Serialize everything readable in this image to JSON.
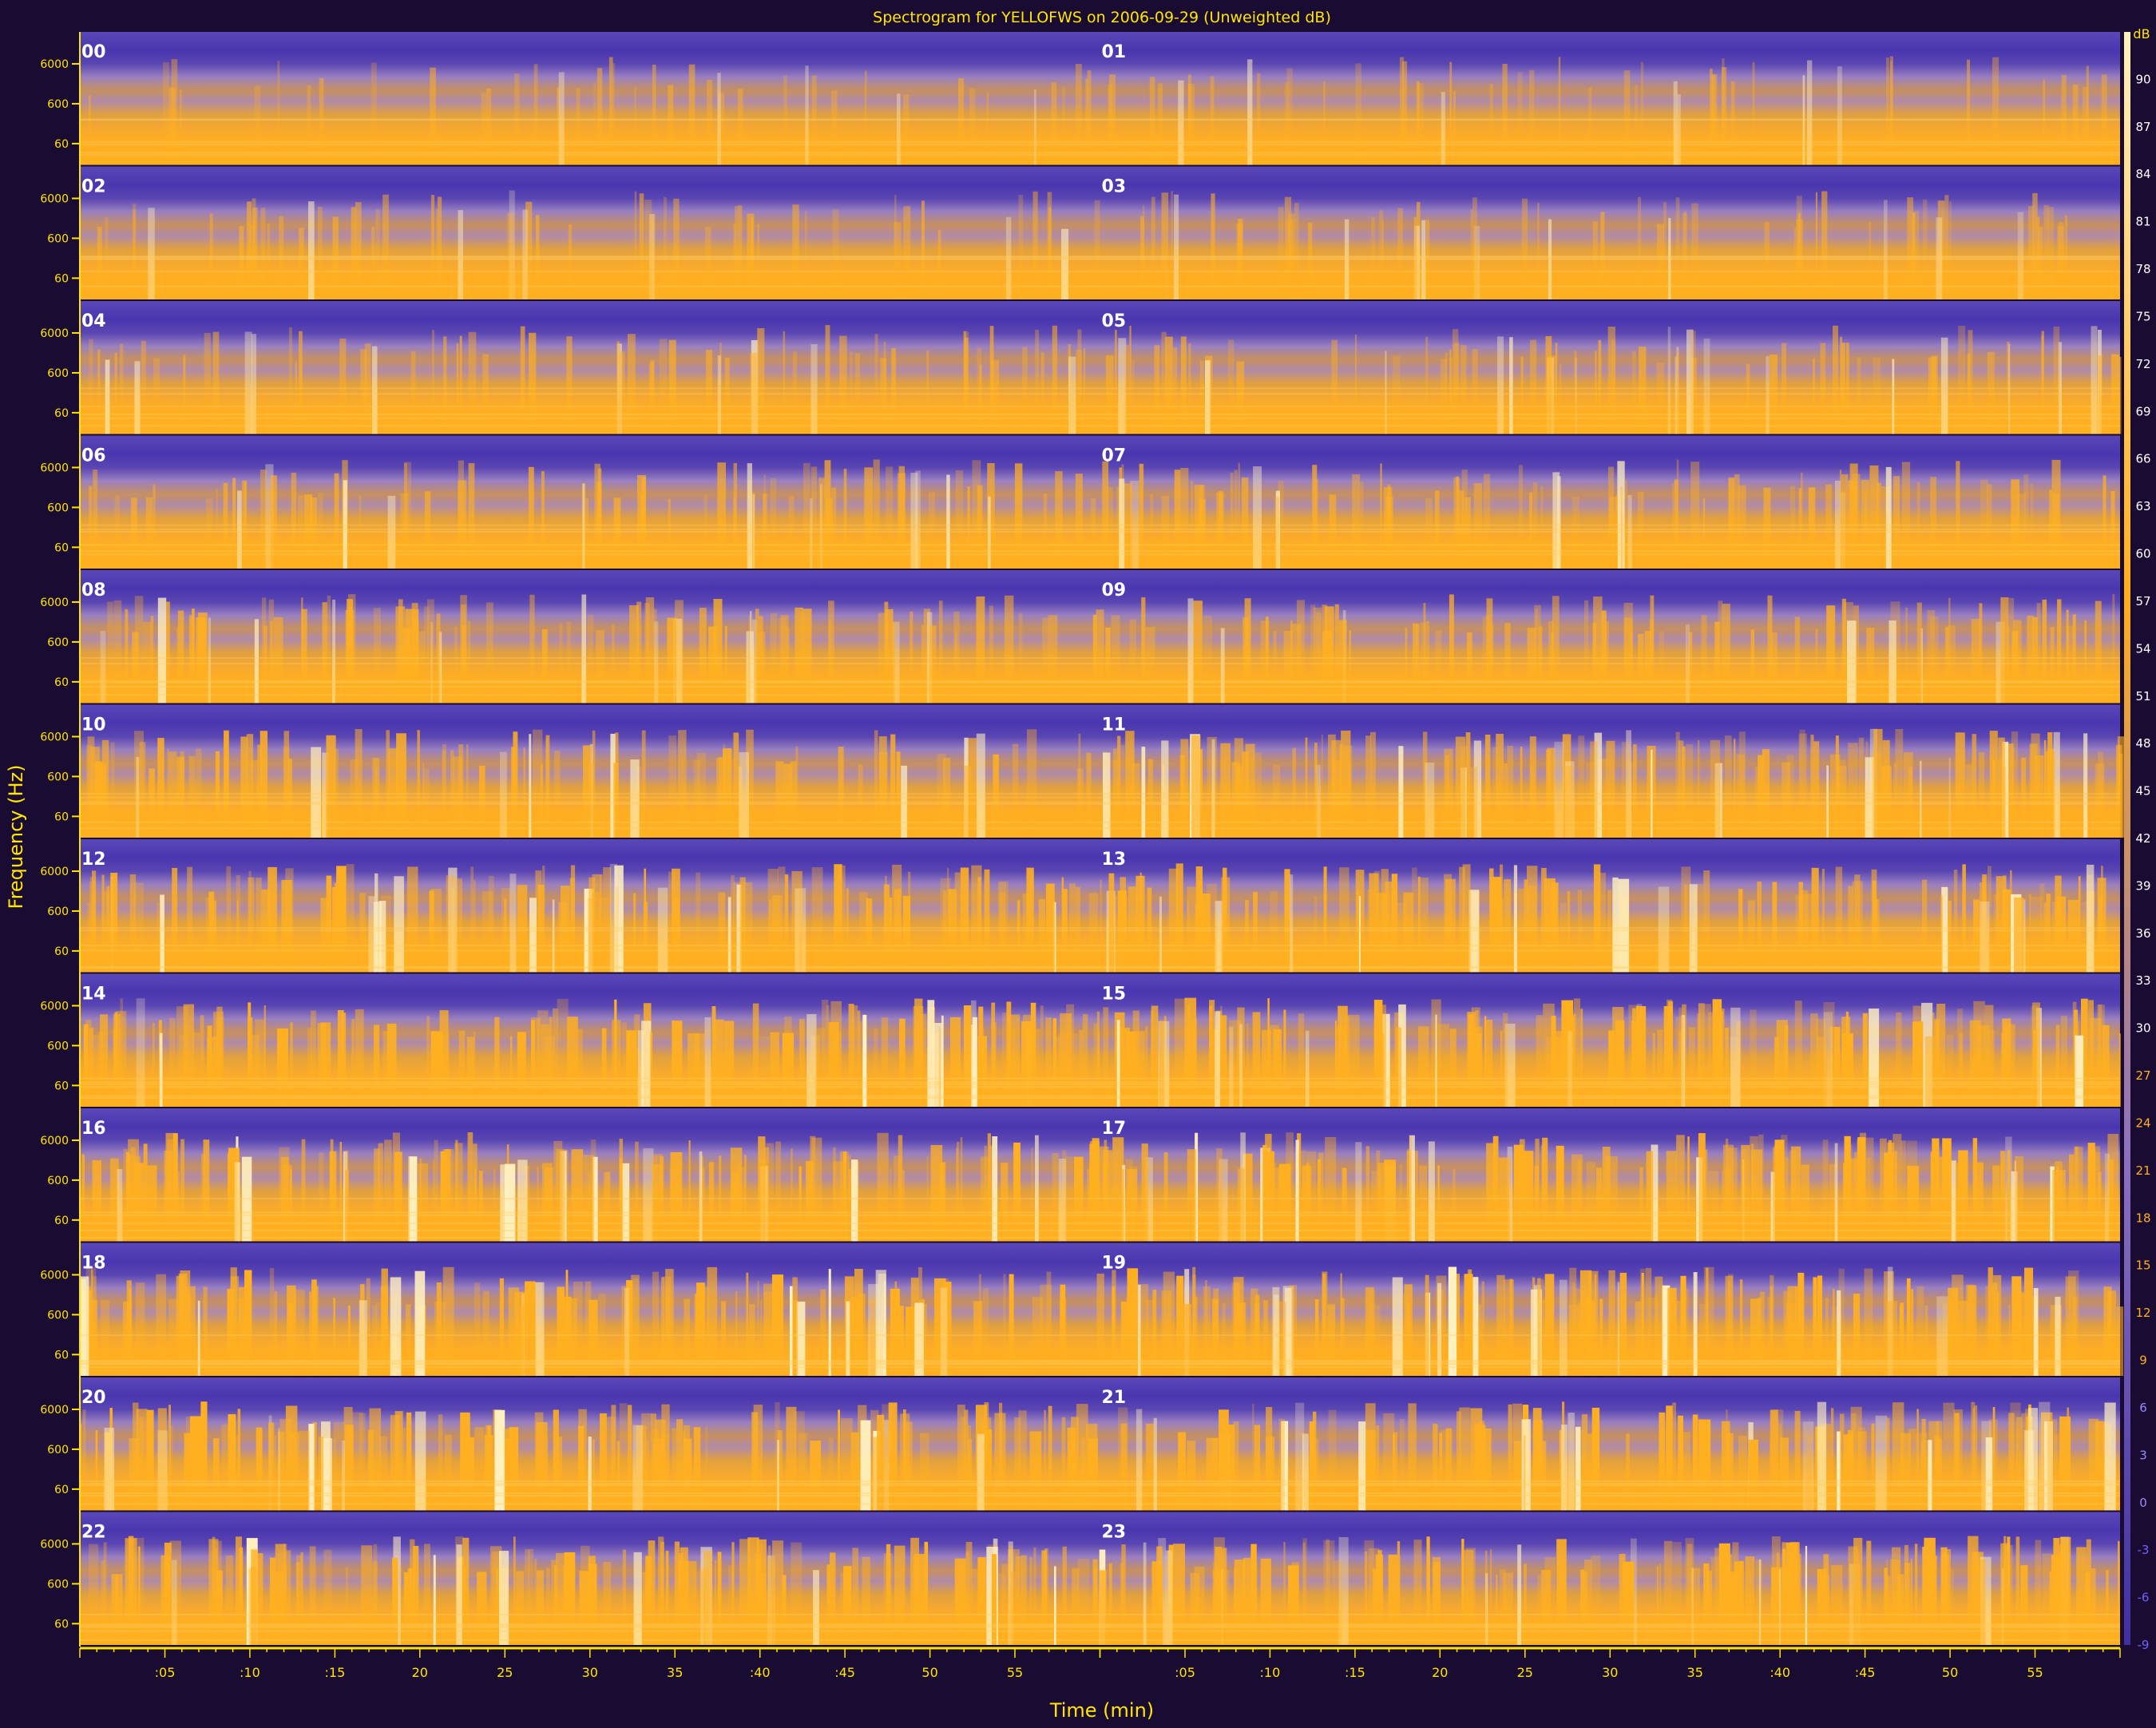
{
  "chart_data": {
    "type": "heatmap",
    "title": "Spectrogram for YELLOFWS on 2006-09-29 (Unweighted dB)",
    "xlabel": "Time (min)",
    "ylabel": "Frequency (Hz)",
    "colorbar_unit": "dB",
    "hour_labels": [
      "00",
      "01",
      "02",
      "03",
      "04",
      "05",
      "06",
      "07",
      "08",
      "09",
      "10",
      "11",
      "12",
      "13",
      "14",
      "15",
      "16",
      "17",
      "18",
      "19",
      "20",
      "21",
      "22",
      "23"
    ],
    "freq_tick_labels": [
      "6000",
      "600",
      "60"
    ],
    "x_tick_labels": [
      ":05",
      ":10",
      ":15",
      "20",
      "25",
      "30",
      "35",
      ":40",
      ":45",
      "50",
      "55"
    ],
    "colorbar_ticks": [
      90,
      87,
      84,
      81,
      78,
      75,
      72,
      69,
      66,
      63,
      60,
      57,
      54,
      51,
      48,
      45,
      42,
      39,
      36,
      33,
      30,
      27,
      24,
      21,
      18,
      15,
      12,
      9,
      6,
      3,
      0,
      -3,
      -6,
      -9
    ],
    "colorbar_range": [
      -9,
      93
    ],
    "colors": {
      "background": "#1a0b33",
      "text": "#ffe600",
      "low": "#4a3aa8",
      "mid": "#8a70c0",
      "high": "#ffad1f",
      "peak": "#fff0c0",
      "hour_label": "#ffffff"
    }
  }
}
